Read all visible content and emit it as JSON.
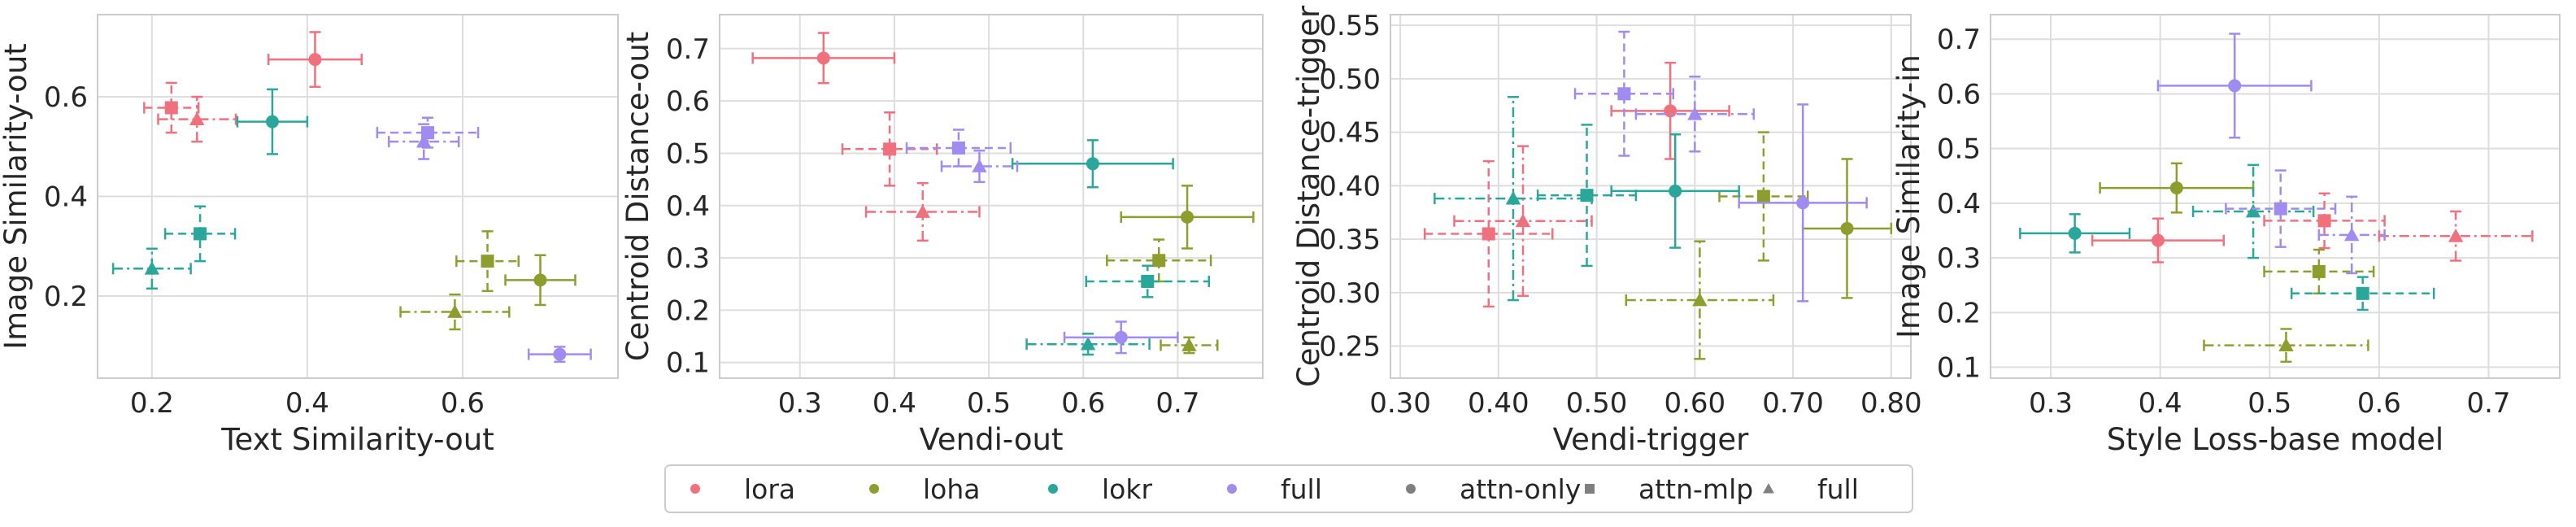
{
  "palette": {
    "lora": "#f0707e",
    "loha": "#8e9e2e",
    "lokr": "#2aa79a",
    "full": "#a08bf0",
    "gray": "#7f7f7f"
  },
  "legend": [
    {
      "label": "lora",
      "color": "#f0707e",
      "marker": "circle"
    },
    {
      "label": "loha",
      "color": "#8e9e2e",
      "marker": "circle"
    },
    {
      "label": "lokr",
      "color": "#2aa79a",
      "marker": "circle"
    },
    {
      "label": "full",
      "color": "#a08bf0",
      "marker": "circle"
    },
    {
      "label": "attn-only",
      "color": "#7f7f7f",
      "marker": "circle"
    },
    {
      "label": "attn-mlp",
      "color": "#7f7f7f",
      "marker": "square"
    },
    {
      "label": "full",
      "color": "#7f7f7f",
      "marker": "triangle"
    }
  ],
  "chart_data": [
    {
      "type": "scatter",
      "xlabel": "Text Similarity-out",
      "ylabel": "Image Similarity-out",
      "xlim": [
        0.13,
        0.8
      ],
      "ylim": [
        0.035,
        0.765
      ],
      "xticks": [
        0.2,
        0.4,
        0.6
      ],
      "yticks": [
        0.2,
        0.4,
        0.6
      ],
      "tick_decimals": 1,
      "points": [
        {
          "method": "lora",
          "config": "attn-only",
          "x": 0.41,
          "y": 0.675,
          "xerr": 0.06,
          "yerr": 0.055
        },
        {
          "method": "lora",
          "config": "attn-mlp",
          "x": 0.225,
          "y": 0.578,
          "xerr": 0.035,
          "yerr": 0.05
        },
        {
          "method": "lora",
          "config": "full",
          "x": 0.258,
          "y": 0.555,
          "xerr": 0.05,
          "yerr": 0.045
        },
        {
          "method": "loha",
          "config": "attn-only",
          "x": 0.7,
          "y": 0.232,
          "xerr": 0.045,
          "yerr": 0.05
        },
        {
          "method": "loha",
          "config": "attn-mlp",
          "x": 0.632,
          "y": 0.27,
          "xerr": 0.04,
          "yerr": 0.06
        },
        {
          "method": "loha",
          "config": "full",
          "x": 0.59,
          "y": 0.168,
          "xerr": 0.07,
          "yerr": 0.035
        },
        {
          "method": "lokr",
          "config": "attn-only",
          "x": 0.355,
          "y": 0.55,
          "xerr": 0.045,
          "yerr": 0.065
        },
        {
          "method": "lokr",
          "config": "attn-mlp",
          "x": 0.262,
          "y": 0.325,
          "xerr": 0.045,
          "yerr": 0.055
        },
        {
          "method": "lokr",
          "config": "full",
          "x": 0.2,
          "y": 0.255,
          "xerr": 0.05,
          "yerr": 0.04
        },
        {
          "method": "full",
          "config": "attn-only",
          "x": 0.725,
          "y": 0.083,
          "xerr": 0.04,
          "yerr": 0.015
        },
        {
          "method": "full",
          "config": "attn-mlp",
          "x": 0.555,
          "y": 0.528,
          "xerr": 0.065,
          "yerr": 0.03
        },
        {
          "method": "full",
          "config": "full",
          "x": 0.55,
          "y": 0.51,
          "xerr": 0.045,
          "yerr": 0.035
        }
      ]
    },
    {
      "type": "scatter",
      "xlabel": "Vendi-out",
      "ylabel": "Centroid Distance-out",
      "xlim": [
        0.215,
        0.79
      ],
      "ylim": [
        0.07,
        0.765
      ],
      "xticks": [
        0.3,
        0.4,
        0.5,
        0.6,
        0.7
      ],
      "yticks": [
        0.1,
        0.2,
        0.3,
        0.4,
        0.5,
        0.6,
        0.7
      ],
      "tick_decimals": 1,
      "points": [
        {
          "method": "lora",
          "config": "attn-only",
          "x": 0.325,
          "y": 0.682,
          "xerr": 0.075,
          "yerr": 0.048
        },
        {
          "method": "lora",
          "config": "attn-mlp",
          "x": 0.395,
          "y": 0.508,
          "xerr": 0.05,
          "yerr": 0.07
        },
        {
          "method": "lora",
          "config": "full",
          "x": 0.43,
          "y": 0.388,
          "xerr": 0.06,
          "yerr": 0.055
        },
        {
          "method": "loha",
          "config": "attn-only",
          "x": 0.71,
          "y": 0.378,
          "xerr": 0.07,
          "yerr": 0.06
        },
        {
          "method": "loha",
          "config": "attn-mlp",
          "x": 0.68,
          "y": 0.295,
          "xerr": 0.055,
          "yerr": 0.04
        },
        {
          "method": "loha",
          "config": "full",
          "x": 0.712,
          "y": 0.133,
          "xerr": 0.03,
          "yerr": 0.015
        },
        {
          "method": "lokr",
          "config": "attn-only",
          "x": 0.61,
          "y": 0.48,
          "xerr": 0.085,
          "yerr": 0.045
        },
        {
          "method": "lokr",
          "config": "attn-mlp",
          "x": 0.668,
          "y": 0.255,
          "xerr": 0.065,
          "yerr": 0.03
        },
        {
          "method": "lokr",
          "config": "full",
          "x": 0.605,
          "y": 0.135,
          "xerr": 0.065,
          "yerr": 0.02
        },
        {
          "method": "full",
          "config": "attn-only",
          "x": 0.64,
          "y": 0.148,
          "xerr": 0.06,
          "yerr": 0.03
        },
        {
          "method": "full",
          "config": "attn-mlp",
          "x": 0.468,
          "y": 0.51,
          "xerr": 0.055,
          "yerr": 0.035
        },
        {
          "method": "full",
          "config": "full",
          "x": 0.49,
          "y": 0.475,
          "xerr": 0.04,
          "yerr": 0.03
        }
      ]
    },
    {
      "type": "scatter",
      "xlabel": "Vendi-trigger",
      "ylabel": "Centroid Distance-trigger",
      "xlim": [
        0.29,
        0.82
      ],
      "ylim": [
        0.22,
        0.56
      ],
      "xticks": [
        0.3,
        0.4,
        0.5,
        0.6,
        0.7,
        0.8
      ],
      "yticks": [
        0.25,
        0.3,
        0.35,
        0.4,
        0.45,
        0.5,
        0.55
      ],
      "tick_decimals": 2,
      "points": [
        {
          "method": "lora",
          "config": "attn-only",
          "x": 0.575,
          "y": 0.47,
          "xerr": 0.06,
          "yerr": 0.045
        },
        {
          "method": "lora",
          "config": "attn-mlp",
          "x": 0.39,
          "y": 0.355,
          "xerr": 0.065,
          "yerr": 0.068
        },
        {
          "method": "lora",
          "config": "full",
          "x": 0.425,
          "y": 0.367,
          "xerr": 0.07,
          "yerr": 0.07
        },
        {
          "method": "loha",
          "config": "attn-only",
          "x": 0.755,
          "y": 0.36,
          "xerr": 0.045,
          "yerr": 0.065
        },
        {
          "method": "loha",
          "config": "attn-mlp",
          "x": 0.67,
          "y": 0.39,
          "xerr": 0.045,
          "yerr": 0.06
        },
        {
          "method": "loha",
          "config": "full",
          "x": 0.605,
          "y": 0.293,
          "xerr": 0.075,
          "yerr": 0.055
        },
        {
          "method": "lokr",
          "config": "attn-only",
          "x": 0.58,
          "y": 0.395,
          "xerr": 0.065,
          "yerr": 0.053
        },
        {
          "method": "lokr",
          "config": "attn-mlp",
          "x": 0.49,
          "y": 0.391,
          "xerr": 0.05,
          "yerr": 0.066
        },
        {
          "method": "lokr",
          "config": "full",
          "x": 0.415,
          "y": 0.388,
          "xerr": 0.08,
          "yerr": 0.095
        },
        {
          "method": "full",
          "config": "attn-only",
          "x": 0.71,
          "y": 0.384,
          "xerr": 0.065,
          "yerr": 0.092
        },
        {
          "method": "full",
          "config": "attn-mlp",
          "x": 0.528,
          "y": 0.486,
          "xerr": 0.05,
          "yerr": 0.058
        },
        {
          "method": "full",
          "config": "full",
          "x": 0.6,
          "y": 0.467,
          "xerr": 0.06,
          "yerr": 0.035
        }
      ]
    },
    {
      "type": "scatter",
      "xlabel": "Style Loss-base model",
      "ylabel": "Image Similarity-in",
      "xlim": [
        0.245,
        0.765
      ],
      "ylim": [
        0.08,
        0.745
      ],
      "xticks": [
        0.3,
        0.4,
        0.5,
        0.6,
        0.7
      ],
      "yticks": [
        0.1,
        0.2,
        0.3,
        0.4,
        0.5,
        0.6,
        0.7
      ],
      "tick_decimals": 1,
      "points": [
        {
          "method": "lora",
          "config": "attn-only",
          "x": 0.398,
          "y": 0.332,
          "xerr": 0.06,
          "yerr": 0.04
        },
        {
          "method": "lora",
          "config": "attn-mlp",
          "x": 0.55,
          "y": 0.368,
          "xerr": 0.055,
          "yerr": 0.05
        },
        {
          "method": "lora",
          "config": "full",
          "x": 0.67,
          "y": 0.34,
          "xerr": 0.07,
          "yerr": 0.045
        },
        {
          "method": "loha",
          "config": "attn-only",
          "x": 0.415,
          "y": 0.428,
          "xerr": 0.07,
          "yerr": 0.045
        },
        {
          "method": "loha",
          "config": "attn-mlp",
          "x": 0.545,
          "y": 0.275,
          "xerr": 0.05,
          "yerr": 0.04
        },
        {
          "method": "loha",
          "config": "full",
          "x": 0.515,
          "y": 0.14,
          "xerr": 0.075,
          "yerr": 0.03
        },
        {
          "method": "lokr",
          "config": "attn-only",
          "x": 0.322,
          "y": 0.345,
          "xerr": 0.05,
          "yerr": 0.035
        },
        {
          "method": "lokr",
          "config": "attn-mlp",
          "x": 0.585,
          "y": 0.235,
          "xerr": 0.065,
          "yerr": 0.03
        },
        {
          "method": "lokr",
          "config": "full",
          "x": 0.485,
          "y": 0.385,
          "xerr": 0.055,
          "yerr": 0.085
        },
        {
          "method": "full",
          "config": "attn-only",
          "x": 0.468,
          "y": 0.615,
          "xerr": 0.07,
          "yerr": 0.095
        },
        {
          "method": "full",
          "config": "attn-mlp",
          "x": 0.51,
          "y": 0.39,
          "xerr": 0.05,
          "yerr": 0.07
        },
        {
          "method": "full",
          "config": "full",
          "x": 0.575,
          "y": 0.342,
          "xerr": 0.03,
          "yerr": 0.07
        }
      ]
    }
  ]
}
